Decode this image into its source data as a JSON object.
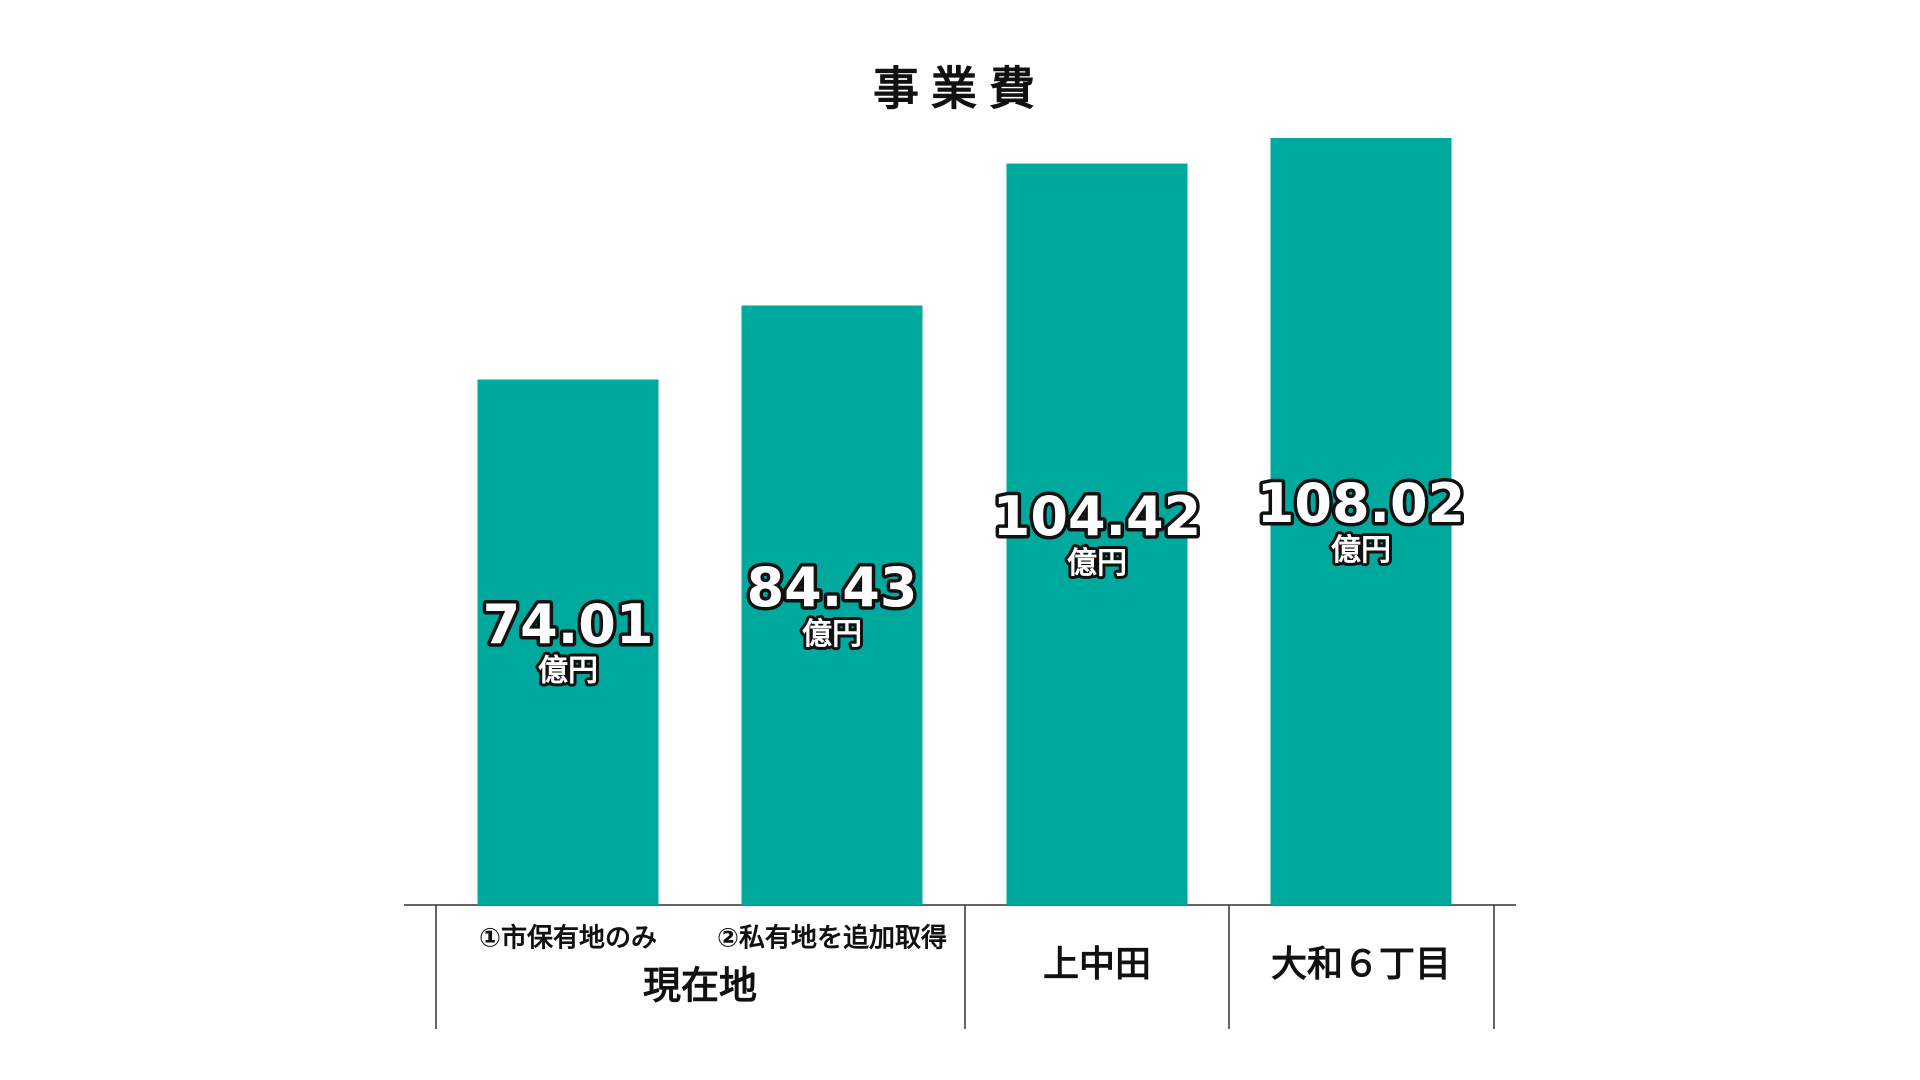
{
  "chart_data": {
    "type": "bar",
    "title": "事業費",
    "categories": [
      "①市保有地のみ",
      "②私有地を追加取得",
      "上中田",
      "大和６丁目"
    ],
    "x_group_label": "現在地",
    "values": [
      74.01,
      84.43,
      104.42,
      108.02
    ],
    "unit": "億円",
    "color": "#00a99d"
  }
}
